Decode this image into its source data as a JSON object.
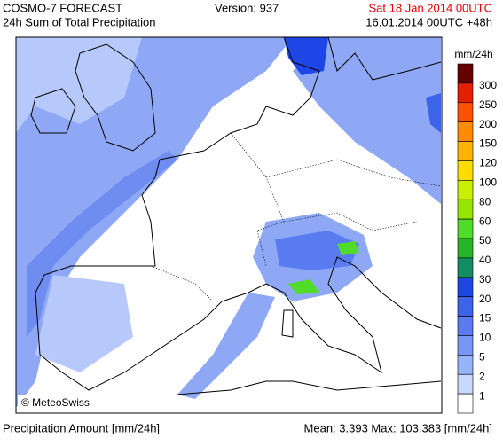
{
  "header": {
    "title": "COSMO-7 FORECAST",
    "subtitle": "24h Sum of Total Precipitation",
    "version": "Version: 937",
    "valid_time": "Sat 18 Jan 2014 00UTC",
    "run_time": "16.01.2014 00UTC +48h"
  },
  "map": {
    "credit": "© MeteoSwiss"
  },
  "legend": {
    "unit": "mm/24h",
    "thresholds": [
      300,
      250,
      200,
      150,
      120,
      100,
      80,
      60,
      50,
      40,
      30,
      20,
      15,
      10,
      5,
      2,
      1
    ],
    "colors": [
      "#640000",
      "#e61e00",
      "#ff5000",
      "#ff8c00",
      "#ffb400",
      "#ffdc00",
      "#c8f000",
      "#96e600",
      "#50dc28",
      "#28b428",
      "#148c64",
      "#1e46e6",
      "#3c64eb",
      "#5a7cf0",
      "#7896f5",
      "#96b4fa",
      "#c8d7fc",
      "#ffffff"
    ]
  },
  "footer": {
    "left": "Precipitation Amount [mm/24h]",
    "right": "Mean:  3.393 Max: 103.383 [mm/24h]"
  }
}
